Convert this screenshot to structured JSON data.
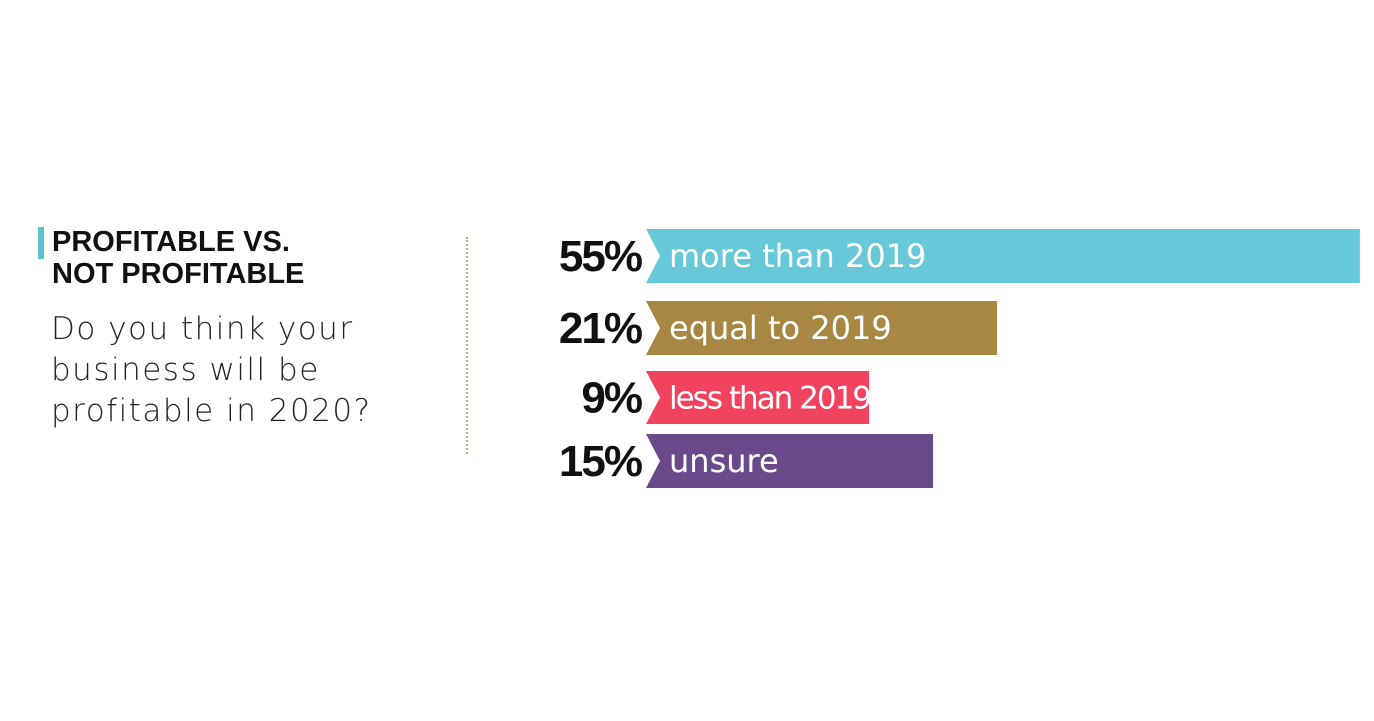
{
  "chart_data": {
    "type": "bar",
    "orientation": "horizontal",
    "title": "PROFITABLE VS.\nNOT PROFITABLE",
    "subtitle": "Do you think your business will be profitable in 2020?",
    "categories": [
      "more than 2019",
      "equal to 2019",
      "less than 2019",
      "unsure"
    ],
    "values": [
      55,
      21,
      9,
      15
    ],
    "value_labels": [
      "55%",
      "21%",
      "9%",
      "15%"
    ],
    "colors": [
      "#67c8d9",
      "#a88743",
      "#f2435e",
      "#6a4a8b"
    ],
    "accent_color": "#5bc3d3",
    "grid": false
  }
}
